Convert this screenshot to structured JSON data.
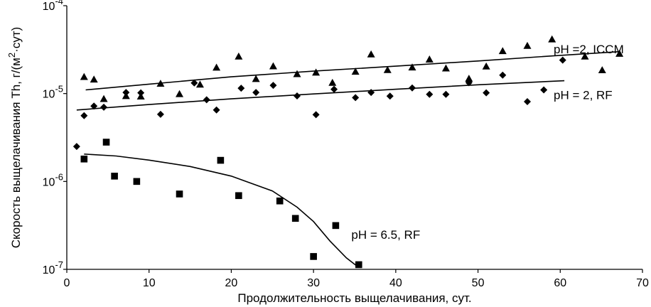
{
  "chart_data": {
    "type": "scatter",
    "title": "",
    "xlabel": "Продолжительность выщелачивания, сут.",
    "ylabel_parts": [
      "Скорость выщелачивания Th, г/(м",
      "2",
      "·сут)"
    ],
    "x_range": [
      0,
      70
    ],
    "x_ticks": [
      0,
      10,
      20,
      30,
      40,
      50,
      60,
      70
    ],
    "y_scale": "log",
    "y_range": [
      1e-07,
      0.0001
    ],
    "y_ticks": [
      {
        "value": 1e-07,
        "base": "10",
        "exp": "-7"
      },
      {
        "value": 1e-06,
        "base": "10",
        "exp": "-6"
      },
      {
        "value": 1e-05,
        "base": "10",
        "exp": "-5"
      },
      {
        "value": 0.0001,
        "base": "10",
        "exp": "-4"
      }
    ],
    "grid": false,
    "series": [
      {
        "name": "pH =2, ICCM",
        "marker": "triangle",
        "label_at": [
          59.2,
          3.2e-05
        ],
        "points": [
          [
            2.1,
            1.55e-05
          ],
          [
            3.3,
            1.45e-05
          ],
          [
            4.5,
            8.7e-06
          ],
          [
            7.2,
            9.4e-06
          ],
          [
            9.0,
            9.3e-06
          ],
          [
            11.4,
            1.3e-05
          ],
          [
            13.7,
            9.9e-06
          ],
          [
            16.2,
            1.27e-05
          ],
          [
            18.2,
            1.98e-05
          ],
          [
            20.9,
            2.65e-05
          ],
          [
            23.0,
            1.47e-05
          ],
          [
            25.1,
            2.05e-05
          ],
          [
            28.0,
            1.67e-05
          ],
          [
            30.3,
            1.74e-05
          ],
          [
            32.3,
            1.33e-05
          ],
          [
            35.1,
            1.78e-05
          ],
          [
            37.0,
            2.8e-05
          ],
          [
            39.0,
            1.86e-05
          ],
          [
            42.0,
            1.99e-05
          ],
          [
            44.1,
            2.45e-05
          ],
          [
            46.1,
            1.94e-05
          ],
          [
            48.9,
            1.48e-05
          ],
          [
            51.0,
            2.04e-05
          ],
          [
            53.0,
            3.05e-05
          ],
          [
            56.0,
            3.5e-05
          ],
          [
            59.0,
            4.15e-05
          ],
          [
            63.0,
            2.65e-05
          ],
          [
            65.1,
            1.85e-05
          ],
          [
            67.2,
            2.85e-05
          ]
        ],
        "fit": [
          [
            2.3,
            1.1e-05
          ],
          [
            10,
            1.28e-05
          ],
          [
            20,
            1.55e-05
          ],
          [
            30,
            1.8e-05
          ],
          [
            40,
            2.05e-05
          ],
          [
            50,
            2.35e-05
          ],
          [
            60,
            2.72e-05
          ],
          [
            67.2,
            3e-05
          ]
        ]
      },
      {
        "name": "pH = 2, RF",
        "marker": "diamond",
        "label_at": [
          59.2,
          9.7e-06
        ],
        "points": [
          [
            1.2,
            2.5e-06
          ],
          [
            2.1,
            5.6e-06
          ],
          [
            3.3,
            7.2e-06
          ],
          [
            4.5,
            7e-06
          ],
          [
            7.2,
            1.03e-05
          ],
          [
            9.0,
            1.02e-05
          ],
          [
            11.4,
            5.8e-06
          ],
          [
            15.5,
            1.32e-05
          ],
          [
            17.0,
            8.5e-06
          ],
          [
            18.2,
            6.5e-06
          ],
          [
            21.2,
            1.15e-05
          ],
          [
            23.0,
            1.03e-05
          ],
          [
            25.1,
            1.24e-05
          ],
          [
            28.0,
            9.4e-06
          ],
          [
            30.3,
            5.75e-06
          ],
          [
            32.5,
            1.12e-05
          ],
          [
            35.1,
            9e-06
          ],
          [
            37.0,
            1.03e-05
          ],
          [
            39.3,
            9.35e-06
          ],
          [
            42.0,
            1.16e-05
          ],
          [
            44.1,
            9.8e-06
          ],
          [
            46.1,
            9.8e-06
          ],
          [
            48.9,
            1.33e-05
          ],
          [
            51.0,
            1.02e-05
          ],
          [
            53.0,
            1.62e-05
          ],
          [
            56.0,
            8.1e-06
          ],
          [
            58.0,
            1.1e-05
          ],
          [
            60.3,
            2.4e-05
          ]
        ],
        "fit": [
          [
            1.2,
            6.5e-06
          ],
          [
            10,
            7.5e-06
          ],
          [
            20,
            8.7e-06
          ],
          [
            30,
            9.9e-06
          ],
          [
            40,
            1.12e-05
          ],
          [
            50,
            1.26e-05
          ],
          [
            60.5,
            1.4e-05
          ]
        ]
      },
      {
        "name": "pH = 6.5, RF",
        "marker": "square",
        "label_at": [
          34.6,
          2.5e-07
        ],
        "points": [
          [
            2.1,
            1.8e-06
          ],
          [
            4.8,
            2.8e-06
          ],
          [
            5.8,
            1.15e-06
          ],
          [
            8.5,
            1e-06
          ],
          [
            13.7,
            7.2e-07
          ],
          [
            18.7,
            1.74e-06
          ],
          [
            20.9,
            6.9e-07
          ],
          [
            25.9,
            6e-07
          ],
          [
            27.8,
            3.8e-07
          ],
          [
            30.0,
            1.4e-07
          ],
          [
            32.7,
            3.15e-07
          ],
          [
            35.5,
            1.13e-07
          ]
        ],
        "fit": [
          [
            2.1,
            2.05e-06
          ],
          [
            6,
            1.95e-06
          ],
          [
            10,
            1.75e-06
          ],
          [
            15,
            1.48e-06
          ],
          [
            20,
            1.15e-06
          ],
          [
            25,
            7.8e-07
          ],
          [
            28,
            5.1e-07
          ],
          [
            30,
            3.5e-07
          ],
          [
            32,
            2.1e-07
          ],
          [
            34,
            1.35e-07
          ],
          [
            35.5,
            1.05e-07
          ]
        ]
      }
    ]
  }
}
